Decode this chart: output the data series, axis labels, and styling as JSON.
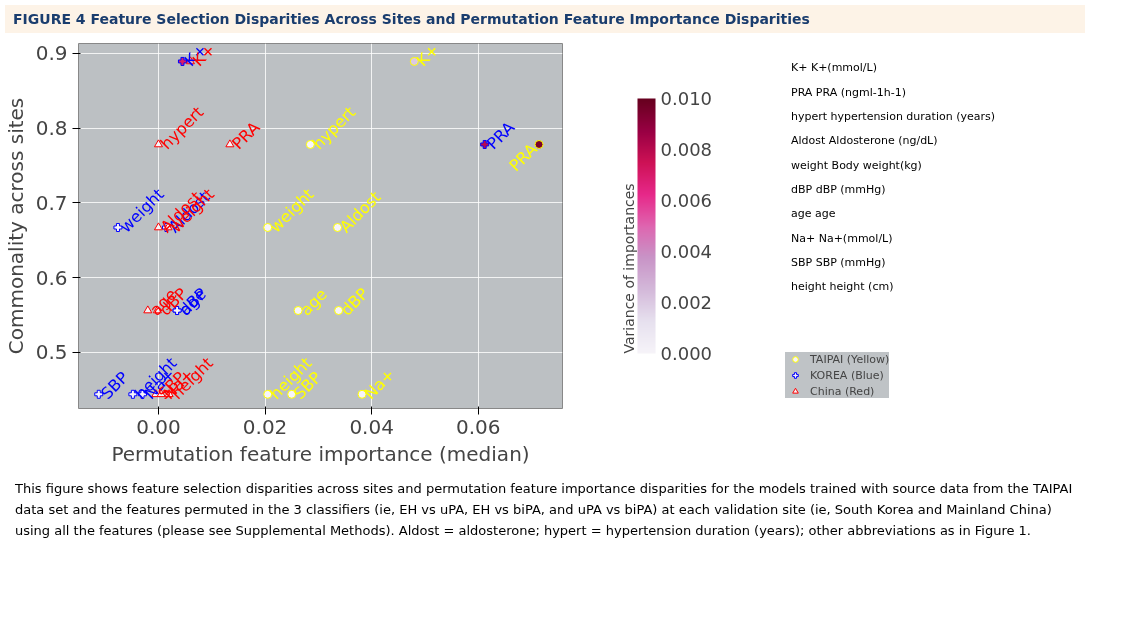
{
  "chart_data": {
    "type": "scatter",
    "title": "FIGURE 4  Feature Selection Disparities Across Sites and Permutation Feature Importance Disparities",
    "xlabel": "Permutation feature importance (median)",
    "ylabel": "Commonality across sites",
    "clabel": "Variance of importances",
    "xlim": [
      -0.015,
      0.0758
    ],
    "ylim": [
      0.425,
      0.913
    ],
    "xticks": [
      {
        "value": 0,
        "label": "0.00"
      },
      {
        "value": 0.02,
        "label": "0.02"
      },
      {
        "value": 0.04,
        "label": "0.04"
      },
      {
        "value": 0.06,
        "label": "0.06"
      }
    ],
    "yticks": [
      0.5,
      0.6,
      0.7,
      0.8,
      0.9
    ],
    "clim": [
      0,
      0.01
    ],
    "cticks": [
      {
        "value": 0,
        "label": "0.000"
      },
      {
        "value": 0.002,
        "label": "0.002"
      },
      {
        "value": 0.004,
        "label": "0.004"
      },
      {
        "value": 0.006,
        "label": "0.006"
      },
      {
        "value": 0.008,
        "label": "0.008"
      },
      {
        "value": 0.01,
        "label": "0.010"
      }
    ],
    "grid": true,
    "legend": "right",
    "series": [
      {
        "name": "TAIPAI (Yellow)",
        "color": "#ffff00",
        "marker": "circle",
        "x": [
          0.048,
          0.0285,
          0.0714,
          0.0205,
          0.0336,
          0.0262,
          0.0338,
          0.0205,
          0.025,
          0.0382
        ],
        "values": [
          0.889,
          0.778,
          0.778,
          0.667,
          0.667,
          0.556,
          0.556,
          0.444,
          0.444,
          0.444
        ],
        "cvalues": [
          0.002,
          0,
          0.0095,
          0,
          0,
          0,
          0,
          0,
          0,
          0
        ],
        "value_labels": [
          "K+",
          "hypert",
          "PRA",
          "weight",
          "Aldost",
          "age",
          "dBP",
          "height",
          "SBP",
          "Na+"
        ]
      },
      {
        "name": "KOREA (Blue)",
        "color": "#0000ff",
        "marker": "cross",
        "x": [
          0.0045,
          0.0612,
          -0.0076,
          0.0015,
          0.0035,
          0.0035,
          -0.0112,
          -0.0048,
          -0.003
        ],
        "values": [
          0.889,
          0.778,
          0.667,
          0.667,
          0.556,
          0.556,
          0.444,
          0.444,
          0.444
        ],
        "cvalues": [
          0.007,
          0.008,
          0,
          0,
          0,
          0,
          0,
          0,
          0
        ],
        "value_labels": [
          "K+",
          "PRA",
          "weight",
          "Aldost",
          "age",
          "dBP",
          "SBP",
          "height",
          "Na+"
        ]
      },
      {
        "name": "China (Red)",
        "color": "#ff0000",
        "marker": "triangle",
        "x": [
          0.006,
          0.0,
          0.0134,
          0.0,
          0.0018,
          -0.002,
          -0.0002,
          -0.0005,
          0.0005,
          0.002
        ],
        "values": [
          0.889,
          0.778,
          0.778,
          0.667,
          0.667,
          0.556,
          0.556,
          0.444,
          0.444,
          0.444
        ],
        "cvalues": [
          0.003,
          0,
          0,
          0,
          0,
          0,
          0,
          0,
          0,
          0
        ],
        "value_labels": [
          "K+",
          "hypert",
          "PRA",
          "Aldost",
          "weight",
          "age",
          "dBP",
          "SBP",
          "Na+",
          "height"
        ]
      }
    ],
    "annotations": [
      "K+   K+(mmol/L)",
      "PRA   PRA (ngml-1h-1)",
      "hypert   hypertension duration (years)",
      "Aldost   Aldosterone (ng/dL)",
      "weight   Body weight(kg)",
      "dBP   dBP (mmHg)",
      "age   age",
      "Na+   Na+(mmol/L)",
      "SBP   SBP (mmHg)",
      "height   height (cm)",
      "This figure shows feature selection disparities across sites and permutation feature importance disparities for the models trained with source data from the TAIPAI data set and the features permuted in the 3 classifiers (ie, EH vs uPA, EH vs biPA, and uPA vs biPA) at each validation site (ie, South Korea and Mainland China) using all the features (please see Supplemental Methods). Aldost = aldosterone; hypert = hypertension duration (years); other abbreviations as in Figure 1."
    ]
  }
}
